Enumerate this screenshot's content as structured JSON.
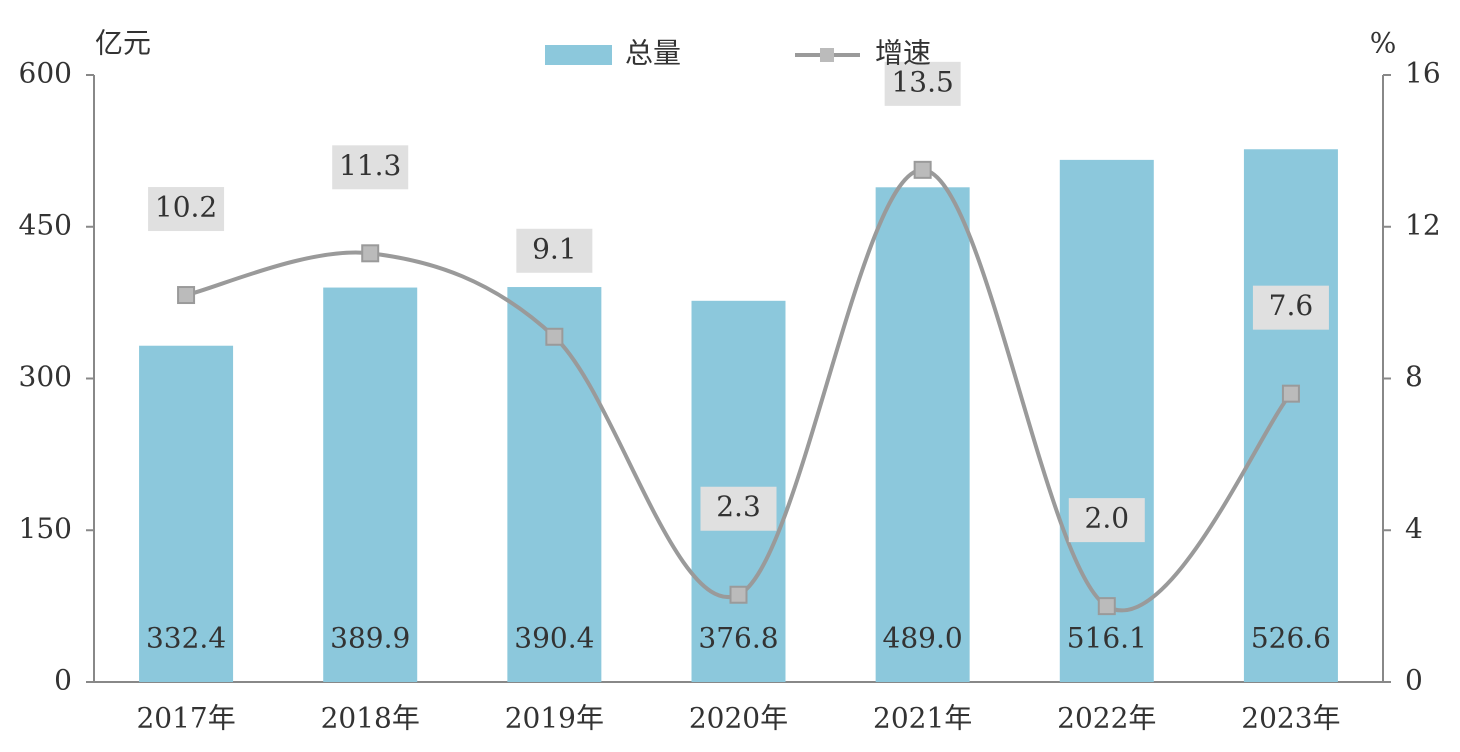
{
  "chart_data": {
    "type": "bar",
    "categories": [
      "2017年",
      "2018年",
      "2019年",
      "2020年",
      "2021年",
      "2022年",
      "2023年"
    ],
    "series": [
      {
        "name": "总量",
        "type": "bar",
        "color": "#8cc8dc",
        "values": [
          332.4,
          389.9,
          390.4,
          376.8,
          489.0,
          516.1,
          526.6
        ],
        "value_labels": [
          "332.4",
          "389.9",
          "390.4",
          "376.8",
          "489.0",
          "516.1",
          "526.6"
        ]
      },
      {
        "name": "增速",
        "type": "line",
        "axis": "y2",
        "color": "#9a9a9a",
        "values": [
          10.2,
          11.3,
          9.1,
          2.3,
          13.5,
          2.0,
          7.6
        ],
        "value_labels": [
          "10.2",
          "11.3",
          "9.1",
          "2.3",
          "13.5",
          "2.0",
          "7.6"
        ]
      }
    ],
    "ylabel": "亿元",
    "y2label": "%",
    "ylim": [
      0,
      600
    ],
    "yticks": [
      0,
      150,
      300,
      450,
      600
    ],
    "y2lim": [
      0,
      16
    ],
    "y2ticks": [
      0,
      4,
      8,
      12,
      16
    ],
    "legend": "top"
  }
}
